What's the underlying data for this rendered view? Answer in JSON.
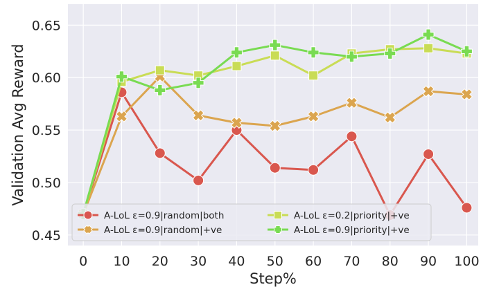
{
  "chart_data": {
    "type": "line",
    "xlabel": "Step%",
    "ylabel": "Validation Avg Reward",
    "x": [
      0,
      10,
      20,
      30,
      40,
      50,
      60,
      70,
      80,
      90,
      100
    ],
    "xticks": [
      "0",
      "10",
      "20",
      "30",
      "40",
      "50",
      "60",
      "70",
      "80",
      "90",
      "100"
    ],
    "yticks": [
      "0.45",
      "0.50",
      "0.55",
      "0.60",
      "0.65"
    ],
    "xlim": [
      -4,
      103
    ],
    "ylim": [
      0.44,
      0.67
    ],
    "grid": true,
    "legend_position": "lower-left, 2 columns",
    "background_color": "#eaeaf2",
    "series": [
      {
        "name": "A-LoL ε=0.9|random|both",
        "color": "#d9574e",
        "marker": "circle",
        "values": [
          0.47,
          0.586,
          0.528,
          0.502,
          0.55,
          0.514,
          0.512,
          0.544,
          0.469,
          0.527,
          0.476
        ]
      },
      {
        "name": "A-LoL ε=0.9|random|+ve",
        "color": "#dba54f",
        "marker": "x",
        "values": [
          0.47,
          0.563,
          0.601,
          0.564,
          0.557,
          0.554,
          0.563,
          0.576,
          0.562,
          0.587,
          0.584
        ]
      },
      {
        "name": "A-LoL ε=0.2|priority|+ve",
        "color": "#c9dc55",
        "marker": "square",
        "values": [
          0.47,
          0.596,
          0.607,
          0.602,
          0.611,
          0.621,
          0.602,
          0.623,
          0.627,
          0.628,
          0.623
        ]
      },
      {
        "name": "A-LoL ε=0.9|priority|+ve",
        "color": "#79db52",
        "marker": "plus",
        "values": [
          0.47,
          0.601,
          0.588,
          0.595,
          0.624,
          0.631,
          0.624,
          0.62,
          0.623,
          0.641,
          0.625
        ]
      }
    ]
  }
}
